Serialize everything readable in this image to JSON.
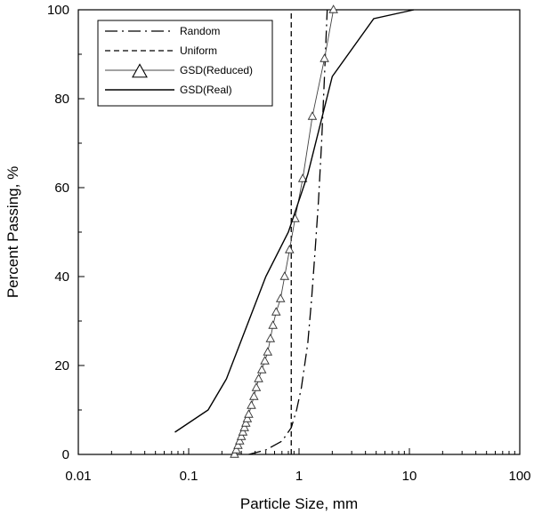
{
  "chart_data": {
    "type": "line",
    "title": "",
    "xlabel": "Particle Size, mm",
    "ylabel": "Percent Passing, %",
    "xscale": "log",
    "xlim": [
      0.01,
      100
    ],
    "ylim": [
      0,
      100
    ],
    "xticks": [
      {
        "value": 0.01,
        "label": "0.01"
      },
      {
        "value": 0.1,
        "label": "0.1"
      },
      {
        "value": 1,
        "label": "1"
      },
      {
        "value": 10,
        "label": "10"
      },
      {
        "value": 100,
        "label": "100"
      }
    ],
    "yticks": [
      {
        "value": 0,
        "label": "0"
      },
      {
        "value": 20,
        "label": "20"
      },
      {
        "value": 40,
        "label": "40"
      },
      {
        "value": 60,
        "label": "60"
      },
      {
        "value": 80,
        "label": "80"
      },
      {
        "value": 100,
        "label": "100"
      }
    ],
    "grid": false,
    "legend_position": "top-left",
    "series": [
      {
        "name": "Random",
        "style": "dash-dot",
        "color": "#000000",
        "points": [
          [
            0.35,
            0
          ],
          [
            0.5,
            1
          ],
          [
            0.7,
            3
          ],
          [
            0.85,
            6
          ],
          [
            0.95,
            10
          ],
          [
            1.05,
            15
          ],
          [
            1.2,
            25
          ],
          [
            1.3,
            35
          ],
          [
            1.4,
            46
          ],
          [
            1.5,
            57
          ],
          [
            1.6,
            70
          ],
          [
            1.7,
            85
          ],
          [
            1.8,
            100
          ]
        ]
      },
      {
        "name": "Uniform",
        "style": "dashed",
        "color": "#000000",
        "points": [
          [
            0.85,
            0
          ],
          [
            0.85,
            100
          ]
        ]
      },
      {
        "name": "GSD(Reduced)",
        "style": "solid-triangle",
        "color": "#444444",
        "points": [
          [
            0.26,
            0
          ],
          [
            0.27,
            1
          ],
          [
            0.28,
            2
          ],
          [
            0.29,
            3
          ],
          [
            0.3,
            4
          ],
          [
            0.31,
            5
          ],
          [
            0.32,
            6
          ],
          [
            0.33,
            7
          ],
          [
            0.34,
            8
          ],
          [
            0.35,
            9
          ],
          [
            0.37,
            11
          ],
          [
            0.39,
            13
          ],
          [
            0.41,
            15
          ],
          [
            0.43,
            17
          ],
          [
            0.46,
            19
          ],
          [
            0.49,
            21
          ],
          [
            0.52,
            23
          ],
          [
            0.55,
            26
          ],
          [
            0.58,
            29
          ],
          [
            0.62,
            32
          ],
          [
            0.68,
            35
          ],
          [
            0.74,
            40
          ],
          [
            0.82,
            46
          ],
          [
            0.92,
            53
          ],
          [
            1.08,
            62
          ],
          [
            1.32,
            76
          ],
          [
            1.7,
            89
          ],
          [
            2.05,
            100
          ]
        ]
      },
      {
        "name": "GSD(Real)",
        "style": "solid",
        "color": "#000000",
        "points": [
          [
            0.075,
            5
          ],
          [
            0.15,
            10
          ],
          [
            0.22,
            17
          ],
          [
            0.35,
            30
          ],
          [
            0.5,
            40
          ],
          [
            0.8,
            50
          ],
          [
            1.2,
            63
          ],
          [
            2.0,
            85
          ],
          [
            4.75,
            98
          ],
          [
            11.0,
            100
          ]
        ]
      }
    ]
  }
}
